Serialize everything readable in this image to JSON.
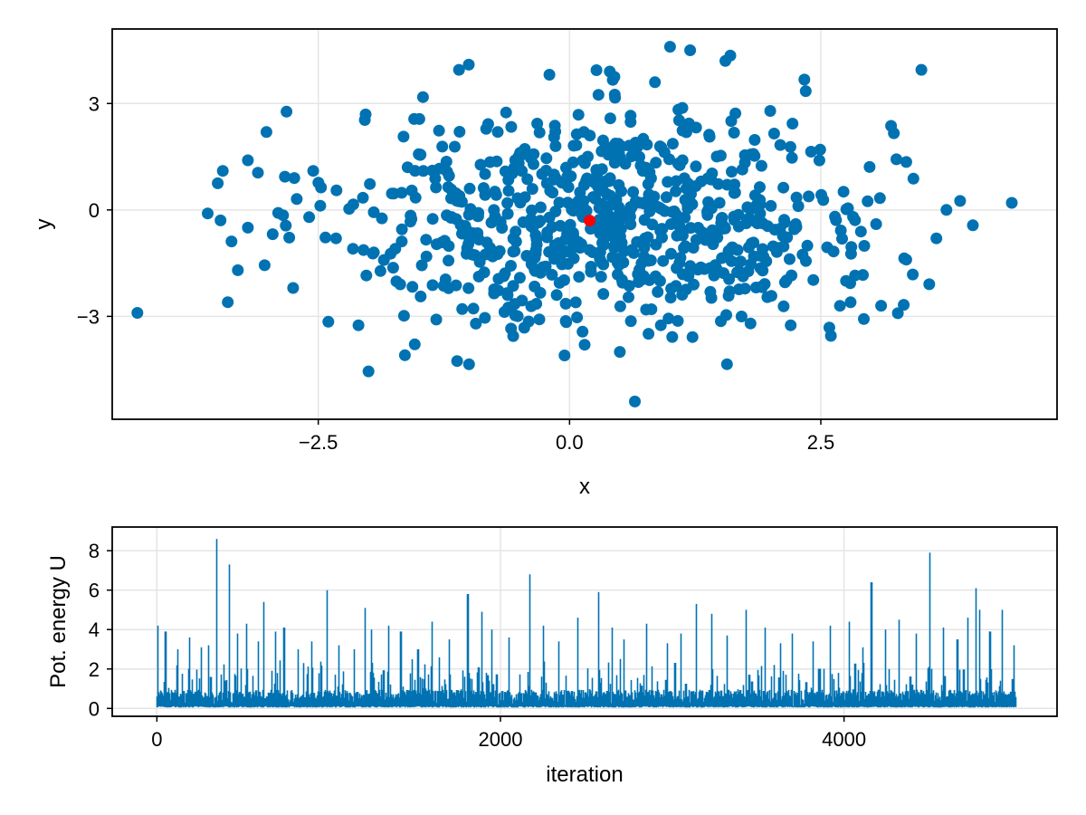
{
  "chart_data": [
    {
      "type": "scatter",
      "title": "",
      "xlabel": "x",
      "ylabel": "y",
      "xlim": [
        -4.55,
        4.85
      ],
      "ylim": [
        -5.9,
        5.1
      ],
      "xticks": [
        -2.5,
        0.0,
        2.5
      ],
      "xtick_labels": [
        "−2.5",
        "0.0",
        "2.5"
      ],
      "yticks": [
        -3,
        0,
        3
      ],
      "ytick_labels": [
        "−3",
        "0",
        "3"
      ],
      "grid": true,
      "legend": "none",
      "colors": {
        "points": "#0072b2",
        "highlight": "#ff0000"
      },
      "highlight_point": {
        "x": 0.2,
        "y": -0.3
      },
      "extreme_points": [
        [
          -4.3,
          -2.9
        ],
        [
          -3.6,
          -0.1
        ],
        [
          -3.45,
          1.1
        ],
        [
          -3.5,
          0.75
        ],
        [
          -3.4,
          -2.6
        ],
        [
          -3.3,
          -1.7
        ],
        [
          -3.1,
          1.05
        ],
        [
          -3.2,
          -0.5
        ],
        [
          -2.85,
          -0.15
        ],
        [
          -2.75,
          -2.2
        ],
        [
          -2.55,
          1.1
        ],
        [
          -2.4,
          -3.15
        ],
        [
          -2.1,
          -3.25
        ],
        [
          -2.0,
          -4.55
        ],
        [
          -1.1,
          3.95
        ],
        [
          -1.0,
          -4.35
        ],
        [
          -0.05,
          -4.1
        ],
        [
          0.4,
          3.9
        ],
        [
          0.45,
          3.25
        ],
        [
          0.5,
          -4.0
        ],
        [
          0.65,
          -5.4
        ],
        [
          0.85,
          3.6
        ],
        [
          1.0,
          4.6
        ],
        [
          1.2,
          4.5
        ],
        [
          1.55,
          4.2
        ],
        [
          1.6,
          4.35
        ],
        [
          2.35,
          3.35
        ],
        [
          3.5,
          3.95
        ],
        [
          2.2,
          -3.25
        ],
        [
          2.6,
          -3.55
        ],
        [
          3.1,
          -2.7
        ],
        [
          3.35,
          -1.4
        ],
        [
          3.35,
          1.35
        ],
        [
          3.65,
          -0.8
        ],
        [
          3.75,
          0.0
        ],
        [
          4.4,
          0.2
        ],
        [
          3.05,
          -0.4
        ],
        [
          2.75,
          -2.0
        ],
        [
          1.8,
          -3.2
        ],
        [
          0.15,
          -3.8
        ]
      ]
    },
    {
      "type": "line",
      "title": "",
      "xlabel": "iteration",
      "ylabel": "Pot. energy U",
      "xlim": [
        -260,
        5240
      ],
      "ylim": [
        -0.4,
        9.2
      ],
      "xticks": [
        0,
        2000,
        4000
      ],
      "xtick_labels": [
        "0",
        "2000",
        "4000"
      ],
      "yticks": [
        0,
        2,
        4,
        6,
        8
      ],
      "ytick_labels": [
        "0",
        "2",
        "4",
        "6",
        "8"
      ],
      "grid": true,
      "legend": "none",
      "n_iterations": 5000,
      "colors": {
        "line": "#0072b2"
      },
      "peaks": [
        {
          "x": 5,
          "y": 4.2
        },
        {
          "x": 50,
          "y": 3.9
        },
        {
          "x": 120,
          "y": 3.0
        },
        {
          "x": 190,
          "y": 3.6
        },
        {
          "x": 260,
          "y": 3.1
        },
        {
          "x": 300,
          "y": 3.2
        },
        {
          "x": 350,
          "y": 8.6
        },
        {
          "x": 420,
          "y": 7.3
        },
        {
          "x": 470,
          "y": 3.8
        },
        {
          "x": 520,
          "y": 4.3
        },
        {
          "x": 590,
          "y": 3.4
        },
        {
          "x": 620,
          "y": 5.4
        },
        {
          "x": 690,
          "y": 3.9
        },
        {
          "x": 740,
          "y": 4.1
        },
        {
          "x": 820,
          "y": 3.0
        },
        {
          "x": 900,
          "y": 3.4
        },
        {
          "x": 990,
          "y": 6.0
        },
        {
          "x": 1060,
          "y": 3.2
        },
        {
          "x": 1150,
          "y": 3.0
        },
        {
          "x": 1210,
          "y": 5.1
        },
        {
          "x": 1250,
          "y": 4.0
        },
        {
          "x": 1350,
          "y": 4.2
        },
        {
          "x": 1420,
          "y": 3.9
        },
        {
          "x": 1520,
          "y": 3.0
        },
        {
          "x": 1600,
          "y": 4.4
        },
        {
          "x": 1700,
          "y": 3.5
        },
        {
          "x": 1810,
          "y": 5.8
        },
        {
          "x": 1890,
          "y": 4.9
        },
        {
          "x": 1950,
          "y": 4.0
        },
        {
          "x": 2050,
          "y": 3.6
        },
        {
          "x": 2170,
          "y": 6.8
        },
        {
          "x": 2250,
          "y": 4.2
        },
        {
          "x": 2340,
          "y": 3.4
        },
        {
          "x": 2450,
          "y": 4.6
        },
        {
          "x": 2570,
          "y": 5.9
        },
        {
          "x": 2650,
          "y": 4.1
        },
        {
          "x": 2720,
          "y": 3.5
        },
        {
          "x": 2850,
          "y": 4.3
        },
        {
          "x": 2970,
          "y": 3.3
        },
        {
          "x": 3050,
          "y": 3.8
        },
        {
          "x": 3140,
          "y": 5.3
        },
        {
          "x": 3230,
          "y": 4.8
        },
        {
          "x": 3320,
          "y": 3.7
        },
        {
          "x": 3430,
          "y": 5.0
        },
        {
          "x": 3540,
          "y": 4.1
        },
        {
          "x": 3630,
          "y": 3.3
        },
        {
          "x": 3700,
          "y": 3.8
        },
        {
          "x": 3820,
          "y": 3.4
        },
        {
          "x": 3920,
          "y": 4.2
        },
        {
          "x": 4030,
          "y": 4.4
        },
        {
          "x": 4110,
          "y": 3.1
        },
        {
          "x": 4160,
          "y": 6.4
        },
        {
          "x": 4240,
          "y": 4.0
        },
        {
          "x": 4320,
          "y": 4.5
        },
        {
          "x": 4420,
          "y": 3.8
        },
        {
          "x": 4500,
          "y": 7.9
        },
        {
          "x": 4580,
          "y": 4.1
        },
        {
          "x": 4660,
          "y": 3.5
        },
        {
          "x": 4720,
          "y": 4.6
        },
        {
          "x": 4770,
          "y": 6.1
        },
        {
          "x": 4790,
          "y": 5.0
        },
        {
          "x": 4850,
          "y": 3.9
        },
        {
          "x": 4920,
          "y": 5.0
        },
        {
          "x": 4990,
          "y": 3.2
        }
      ]
    }
  ]
}
